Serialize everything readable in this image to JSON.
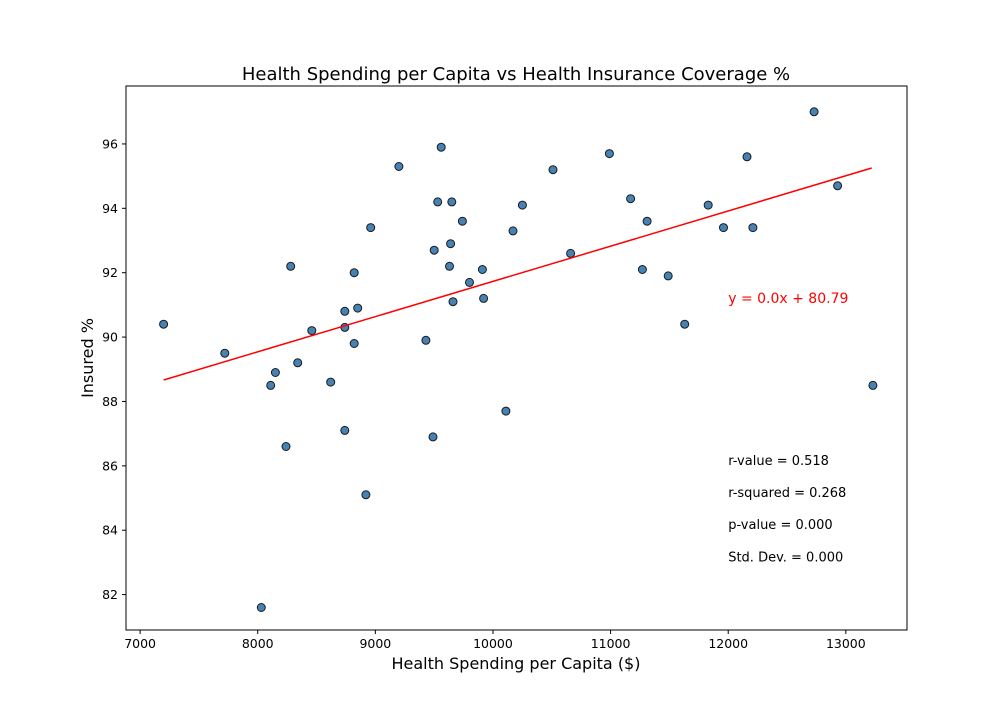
{
  "chart_data": {
    "type": "scatter",
    "title": "Health Spending per Capita vs Health Insurance Coverage %",
    "xlabel": "Health Spending per Capita ($)",
    "ylabel": "Insured %",
    "xlim": [
      6880,
      13520
    ],
    "ylim": [
      80.9,
      97.8
    ],
    "xticks": [
      7000,
      8000,
      9000,
      10000,
      11000,
      12000,
      13000
    ],
    "yticks": [
      82,
      84,
      86,
      88,
      90,
      92,
      94,
      96
    ],
    "grid": false,
    "point_color": "#4682b4",
    "point_edge_color": "#1a1a1a",
    "line_color": "#ff0000",
    "regression": {
      "slope": 0.001094,
      "intercept": 80.79,
      "x_start": 7200,
      "x_end": 13220,
      "equation_label": "y = 0.0x + 80.79",
      "equation_position": [
        12000,
        91.0
      ]
    },
    "stats": {
      "x": 12000,
      "items": [
        {
          "label": "r-value = 0.518",
          "y": 86.0
        },
        {
          "label": "r-squared = 0.268",
          "y": 85.0
        },
        {
          "label": "p-value = 0.000",
          "y": 84.0
        },
        {
          "label": "Std. Dev. = 0.000",
          "y": 83.0
        }
      ]
    },
    "points": [
      [
        7200,
        90.4
      ],
      [
        7720,
        89.5
      ],
      [
        8030,
        81.6
      ],
      [
        8110,
        88.5
      ],
      [
        8150,
        88.9
      ],
      [
        8240,
        86.6
      ],
      [
        8280,
        92.2
      ],
      [
        8340,
        89.2
      ],
      [
        8460,
        90.2
      ],
      [
        8620,
        88.6
      ],
      [
        8740,
        90.8
      ],
      [
        8740,
        90.3
      ],
      [
        8740,
        87.1
      ],
      [
        8820,
        92.0
      ],
      [
        8820,
        89.8
      ],
      [
        8850,
        90.9
      ],
      [
        8920,
        85.1
      ],
      [
        8960,
        93.4
      ],
      [
        9200,
        95.3
      ],
      [
        9430,
        89.9
      ],
      [
        9490,
        86.9
      ],
      [
        9500,
        92.7
      ],
      [
        9530,
        94.2
      ],
      [
        9560,
        95.9
      ],
      [
        9630,
        92.2
      ],
      [
        9640,
        92.9
      ],
      [
        9650,
        94.2
      ],
      [
        9660,
        91.1
      ],
      [
        9740,
        93.6
      ],
      [
        9800,
        91.7
      ],
      [
        9910,
        92.1
      ],
      [
        9920,
        91.2
      ],
      [
        10110,
        87.7
      ],
      [
        10170,
        93.3
      ],
      [
        10250,
        94.1
      ],
      [
        10510,
        95.2
      ],
      [
        10660,
        92.6
      ],
      [
        10990,
        95.7
      ],
      [
        11170,
        94.3
      ],
      [
        11270,
        92.1
      ],
      [
        11310,
        93.6
      ],
      [
        11490,
        91.9
      ],
      [
        11630,
        90.4
      ],
      [
        11830,
        94.1
      ],
      [
        11960,
        93.4
      ],
      [
        12160,
        95.6
      ],
      [
        12210,
        93.4
      ],
      [
        12730,
        97.0
      ],
      [
        12930,
        94.7
      ],
      [
        13230,
        88.5
      ]
    ]
  }
}
